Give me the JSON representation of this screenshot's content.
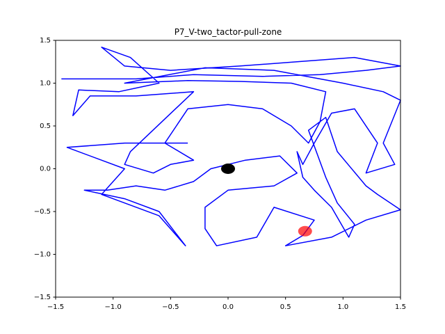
{
  "chart_data": {
    "type": "line",
    "title": "P7_V-two_tactor-pull-zone",
    "xlim": [
      -1.5,
      1.5
    ],
    "ylim": [
      -1.5,
      1.5
    ],
    "xticks": [
      {
        "value": -1.5,
        "label": "−1.5"
      },
      {
        "value": -1.0,
        "label": "−1.0"
      },
      {
        "value": -0.5,
        "label": "−0.5"
      },
      {
        "value": 0,
        "label": "0.0"
      },
      0.5,
      {
        "value": 1.0,
        "label": "1.0"
      },
      1.5
    ],
    "yticks": [
      {
        "value": -1.5,
        "label": "−1.5"
      },
      {
        "value": -1.0,
        "label": "−1.0"
      },
      {
        "value": -0.5,
        "label": "−0.5"
      },
      {
        "value": 0,
        "label": "0.0"
      },
      0.5,
      {
        "value": 1.0,
        "label": "1.0"
      },
      1.5
    ],
    "series": [
      {
        "color": "#0000ff",
        "x": [
          -1.45,
          -0.8,
          -0.3,
          0.3,
          0.8,
          1.2,
          1.5,
          1.1,
          0.6,
          0.1,
          -0.5,
          -0.9,
          -1.1,
          -0.85,
          -0.6,
          -0.95,
          -1.3,
          -1.35,
          -1.2,
          -0.8,
          -0.3,
          -0.85,
          -0.9,
          -0.65,
          -0.5,
          -0.3,
          -0.55,
          -0.35,
          0.0,
          0.3,
          0.55,
          0.7,
          0.8,
          0.85,
          0.55,
          0.1,
          -0.35,
          -0.9,
          -0.2,
          0.4,
          1.0,
          1.35,
          1.5,
          1.35,
          1.45,
          1.2,
          1.3,
          1.1,
          0.9,
          0.75,
          0.65,
          0.6,
          0.65,
          0.75,
          0.9,
          1.05,
          1.1,
          0.95,
          0.85,
          0.7,
          0.85,
          0.95,
          1.2,
          1.3,
          1.5,
          1.2,
          0.9,
          0.5,
          0.65,
          0.75,
          0.4,
          0.25,
          -0.1,
          -0.2,
          -0.2,
          0.0,
          0.4,
          0.6,
          0.45,
          0.15,
          -0.15,
          -0.3,
          -0.55,
          -0.8,
          -1.05,
          -1.25,
          -0.9,
          -0.6,
          -0.37,
          -0.6,
          -1.1,
          -0.9,
          -1.4,
          -0.9,
          -0.35
        ],
        "values": [
          1.05,
          1.05,
          1.1,
          1.08,
          1.1,
          1.15,
          1.2,
          1.3,
          1.25,
          1.2,
          1.15,
          1.2,
          1.42,
          1.3,
          1.0,
          0.9,
          0.92,
          0.62,
          0.85,
          0.85,
          0.9,
          0.2,
          0.05,
          -0.05,
          0.05,
          0.1,
          0.3,
          0.7,
          0.75,
          0.7,
          0.5,
          0.3,
          0.55,
          0.9,
          1.0,
          1.02,
          1.03,
          1.0,
          1.18,
          1.15,
          1.0,
          0.9,
          0.8,
          0.3,
          0.05,
          -0.05,
          0.3,
          0.7,
          0.65,
          0.3,
          0.05,
          0.2,
          -0.1,
          -0.25,
          -0.45,
          -0.8,
          -0.65,
          -0.4,
          -0.1,
          0.45,
          0.6,
          0.2,
          -0.2,
          -0.3,
          -0.48,
          -0.6,
          -0.8,
          -0.9,
          -0.78,
          -0.6,
          -0.45,
          -0.8,
          -0.9,
          -0.7,
          -0.45,
          -0.25,
          -0.2,
          -0.05,
          0.15,
          0.1,
          0.0,
          -0.15,
          -0.25,
          -0.2,
          -0.25,
          -0.25,
          -0.35,
          -0.5,
          -0.9,
          -0.55,
          -0.3,
          0.0,
          0.25,
          0.3,
          0.3
        ]
      }
    ],
    "markers": [
      {
        "x": 0,
        "y": 0,
        "color": "#000000"
      },
      {
        "x": 0.67,
        "y": -0.73,
        "color": "#ff0000"
      }
    ]
  }
}
